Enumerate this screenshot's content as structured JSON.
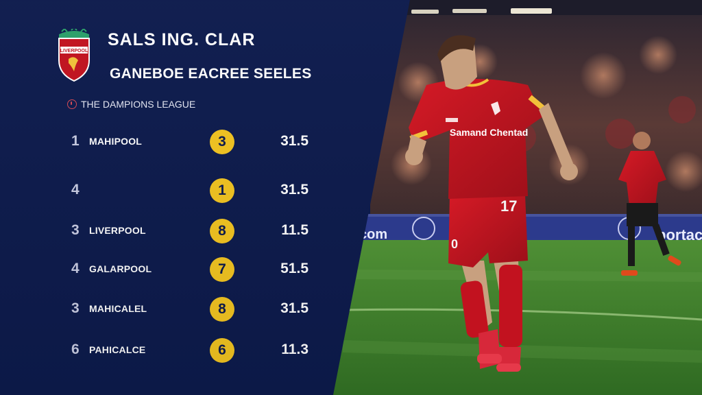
{
  "header": {
    "title": "SALS ING. CLAR",
    "subtitle": "GANEBOE EACREE SEELES",
    "crest_text": "LIVERPOOL"
  },
  "league": {
    "label": "THE DAMPIONS LEAGUE",
    "icon": "champions-league-icon"
  },
  "rows": [
    {
      "rank": "1",
      "team": "MAHIPOOL",
      "badge": "3",
      "score": "31.5"
    },
    {
      "rank": "4",
      "team": "",
      "badge": "1",
      "score": "31.5"
    },
    {
      "rank": "3",
      "team": "LIVERPOOL",
      "badge": "8",
      "score": "11.5"
    },
    {
      "rank": "4",
      "team": "GALARPOOL",
      "badge": "7",
      "score": "51.5"
    },
    {
      "rank": "3",
      "team": "MAHICALEL",
      "badge": "8",
      "score": "31.5"
    },
    {
      "rank": "6",
      "team": "PAHICALCE",
      "badge": "6",
      "score": "11.3"
    }
  ],
  "photo": {
    "board_left": "com",
    "board_right": "portac",
    "shirt_sponsor": "Samand Chentad",
    "shirt_number": "17",
    "shorts_number": "0"
  },
  "colors": {
    "panel": "#0d1b4d",
    "badge": "#f3c521",
    "kit_red": "#c2121f",
    "pitch": "#3f7f2b"
  }
}
